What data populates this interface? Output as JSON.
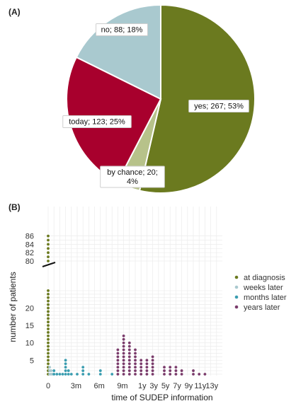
{
  "panels": {
    "a": "(A)",
    "b": "(B)"
  },
  "chart_data": [
    {
      "type": "pie",
      "slices": [
        {
          "label": "yes; 267; 53%",
          "value": 267,
          "percent": 53,
          "color": "#6b7a1f"
        },
        {
          "label_lines": [
            "by chance; 20;",
            "4%"
          ],
          "value": 20,
          "percent": 4,
          "color": "#b7c28a"
        },
        {
          "label": "today; 123; 25%",
          "value": 123,
          "percent": 25,
          "color": "#a8002d"
        },
        {
          "label": "no; 88; 18%",
          "value": 88,
          "percent": 18,
          "color": "#a9c9cf"
        }
      ]
    },
    {
      "type": "scatter",
      "xlabel": "time of SUDEP information",
      "ylabel": "number of patients",
      "x_ticks": [
        "0",
        "3m",
        "6m",
        "9m",
        "1y",
        "3y",
        "5y",
        "7y",
        "9y",
        "11y",
        "13y"
      ],
      "y_ticks_lower": [
        5,
        10,
        15,
        20
      ],
      "y_ticks_upper": [
        80,
        82,
        84,
        86
      ],
      "axis_break": true,
      "grid": true,
      "legend_position": "right",
      "series": [
        {
          "name": "at diagnosis",
          "color": "#6b7a1f",
          "points": [
            {
              "x": 0,
              "count": 86
            }
          ]
        },
        {
          "name": "weeks later",
          "color": "#a9c9cf",
          "points": [
            {
              "x": 0.25,
              "count": 3
            },
            {
              "x": 0.5,
              "count": 2
            },
            {
              "x": 0.75,
              "count": 1
            }
          ]
        },
        {
          "name": "months later",
          "color": "#3a9db0",
          "points": [
            {
              "x": 1,
              "count": 2
            },
            {
              "x": 1.5,
              "count": 1
            },
            {
              "x": 2,
              "count": 1
            },
            {
              "x": 2.5,
              "count": 1
            },
            {
              "x": 3,
              "count": 5
            },
            {
              "x": 3.5,
              "count": 2
            },
            {
              "x": 4,
              "count": 1
            },
            {
              "x": 5,
              "count": 1
            },
            {
              "x": 6,
              "count": 3
            },
            {
              "x": 7,
              "count": 1
            },
            {
              "x": 9,
              "count": 2
            },
            {
              "x": 11,
              "count": 1
            }
          ]
        },
        {
          "name": "years later",
          "color": "#7a3b6b",
          "points": [
            {
              "x": 12,
              "count": 8
            },
            {
              "x": 13,
              "count": 12
            },
            {
              "x": 14,
              "count": 10
            },
            {
              "x": 15,
              "count": 8
            },
            {
              "x": 16,
              "count": 5
            },
            {
              "x": 17,
              "count": 5
            },
            {
              "x": 18,
              "count": 6
            },
            {
              "x": 20,
              "count": 3
            },
            {
              "x": 21,
              "count": 3
            },
            {
              "x": 22,
              "count": 3
            },
            {
              "x": 23,
              "count": 2
            },
            {
              "x": 25,
              "count": 2
            },
            {
              "x": 26,
              "count": 1
            },
            {
              "x": 27,
              "count": 1
            }
          ]
        }
      ]
    }
  ]
}
